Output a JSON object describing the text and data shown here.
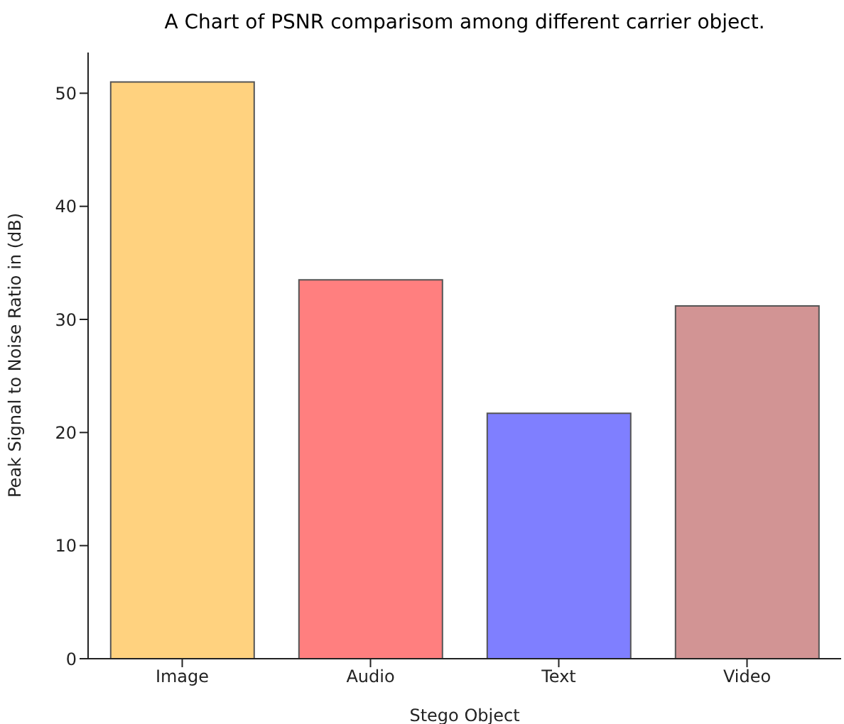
{
  "chart_data": {
    "type": "bar",
    "title": "A Chart of PSNR comparisom among different carrier object.",
    "xlabel": "Stego Object",
    "ylabel": "Peak Signal to Noise Ratio in (dB)",
    "categories": [
      "Image",
      "Audio",
      "Text",
      "Video"
    ],
    "values": [
      51,
      33.5,
      21.7,
      31.2
    ],
    "colors": [
      "#ffd27f",
      "#ff7f7f",
      "#7f7fff",
      "#d29494"
    ],
    "ylim": [
      0,
      53.6
    ],
    "yticks": [
      0,
      10,
      20,
      30,
      40,
      50
    ],
    "grid": false,
    "legend": false
  }
}
